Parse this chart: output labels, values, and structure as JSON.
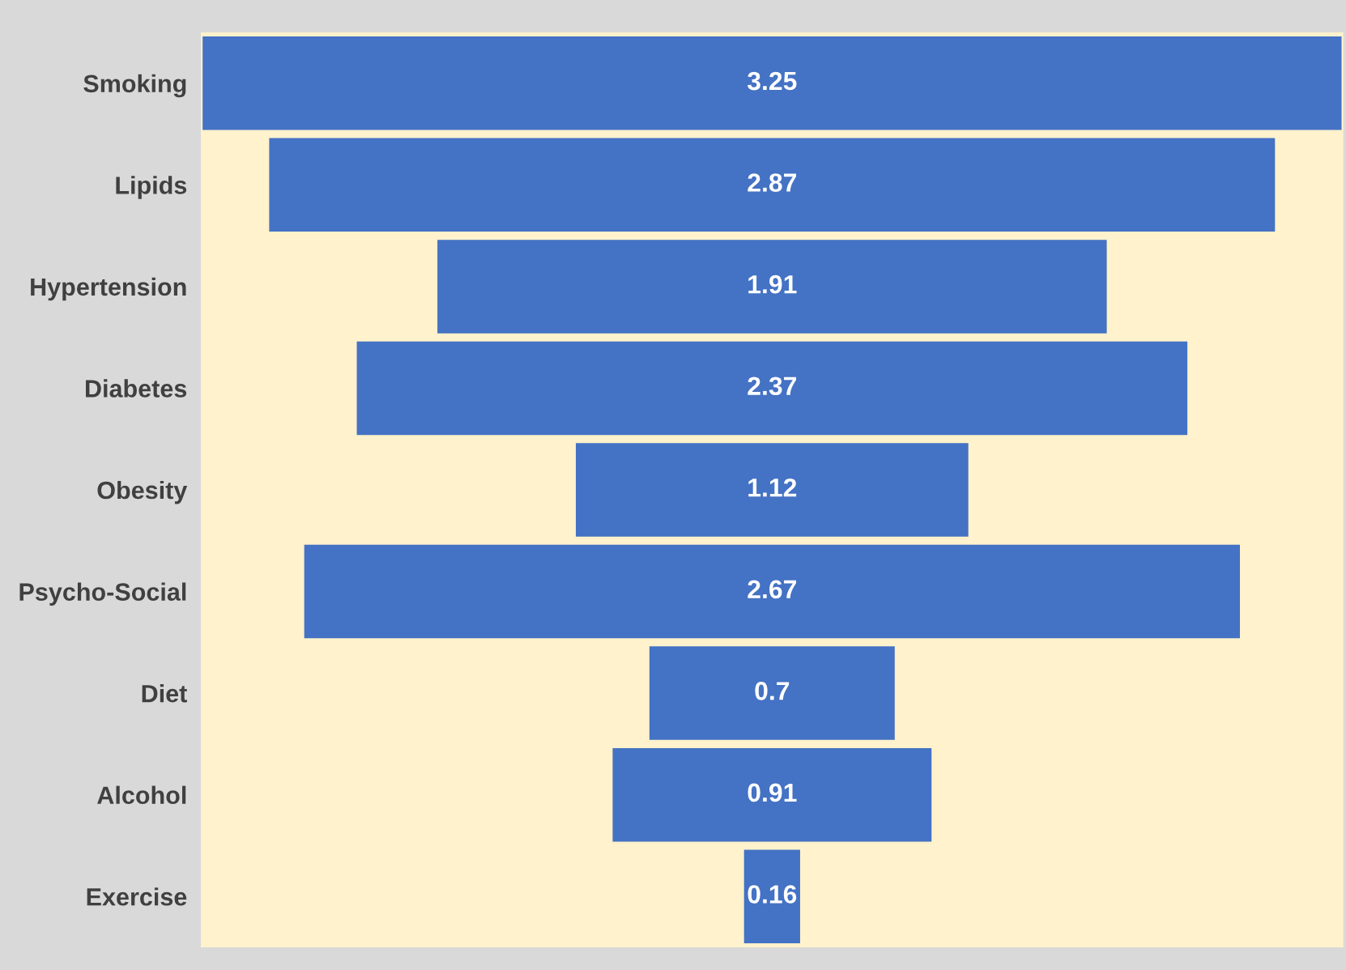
{
  "chart_data": {
    "type": "other",
    "categories": [
      "Smoking",
      "Lipids",
      "Hypertension",
      "Diabetes",
      "Obesity",
      "Psycho-Social",
      "Diet",
      "Alcohol",
      "Exercise"
    ],
    "values": [
      3.25,
      2.87,
      1.91,
      2.37,
      1.12,
      2.67,
      0.7,
      0.91,
      0.16
    ],
    "color": "#4472c4",
    "data_labels": true
  }
}
